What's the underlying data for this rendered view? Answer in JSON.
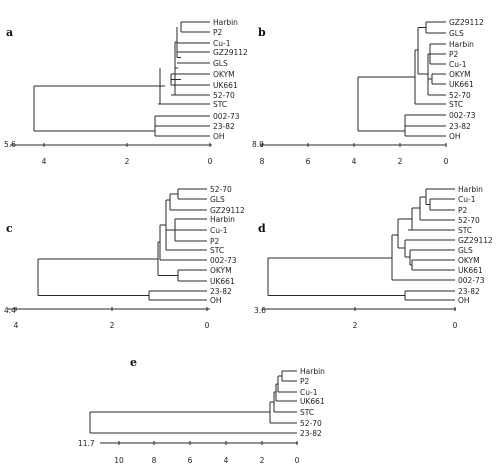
{
  "panels": [
    {
      "id": "a",
      "label": "a",
      "scale_value": "5.6",
      "ticks": [
        "4",
        "2",
        "0"
      ],
      "leaves": [
        "Harbin",
        "P2",
        "Cu-1",
        "GZ29112",
        "GLS",
        "OKYM",
        "UK661",
        "52-70",
        "STC",
        "002-73",
        "23-82",
        "OH"
      ]
    },
    {
      "id": "b",
      "label": "b",
      "scale_value": "8.0",
      "ticks": [
        "8",
        "6",
        "4",
        "2",
        "0"
      ],
      "leaves": [
        "GZ29112",
        "GLS",
        "Harbin",
        "P2",
        "Cu-1",
        "OKYM",
        "UK661",
        "52-70",
        "STC",
        "002-73",
        "23-82",
        "OH"
      ]
    },
    {
      "id": "c",
      "label": "c",
      "scale_value": "4.4",
      "ticks": [
        "4",
        "2",
        "0"
      ],
      "leaves": [
        "52-70",
        "GLS",
        "GZ29112",
        "Harbin",
        "Cu-1",
        "P2",
        "STC",
        "002-73",
        "OKYM",
        "UK661",
        "23-82",
        "OH"
      ]
    },
    {
      "id": "d",
      "label": "d",
      "scale_value": "3.6",
      "ticks": [
        "2",
        "0"
      ],
      "leaves": [
        "Harbin",
        "Cu-1",
        "P2",
        "52-70",
        "STC",
        "GZ29112",
        "GLS",
        "OKYM",
        "UK661",
        "002-73",
        "23-82",
        "OH"
      ]
    },
    {
      "id": "e",
      "label": "e",
      "scale_value": "11.7",
      "ticks": [
        "10",
        "8",
        "6",
        "4",
        "2",
        "0"
      ],
      "leaves": [
        "Harbin",
        "P2",
        "Cu-1",
        "UK661",
        "STC",
        "52-70",
        "23-82"
      ]
    }
  ]
}
